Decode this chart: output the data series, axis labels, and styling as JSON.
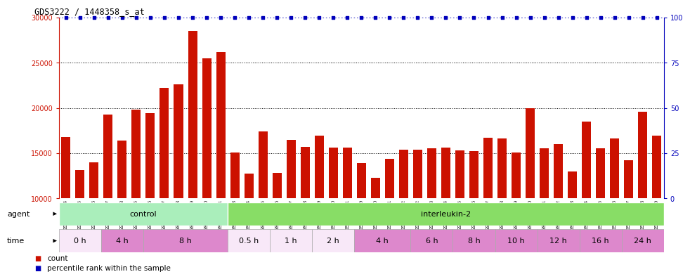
{
  "title": "GDS3222 / 1448358_s_at",
  "samples": [
    "GSM108334",
    "GSM108335",
    "GSM108336",
    "GSM108337",
    "GSM108338",
    "GSM183455",
    "GSM183456",
    "GSM183457",
    "GSM183458",
    "GSM183459",
    "GSM183460",
    "GSM183461",
    "GSM140923",
    "GSM140924",
    "GSM140925",
    "GSM140926",
    "GSM140927",
    "GSM140928",
    "GSM140929",
    "GSM140930",
    "GSM140931",
    "GSM108339",
    "GSM108340",
    "GSM108341",
    "GSM108342",
    "GSM140932",
    "GSM140933",
    "GSM140934",
    "GSM140935",
    "GSM140936",
    "GSM140937",
    "GSM140938",
    "GSM140939",
    "GSM140940",
    "GSM140941",
    "GSM140942",
    "GSM140943",
    "GSM140944",
    "GSM140945",
    "GSM140946",
    "GSM140947",
    "GSM140948",
    "GSM140949"
  ],
  "values": [
    16800,
    13100,
    14000,
    19300,
    16400,
    19800,
    19400,
    22200,
    22600,
    28500,
    25500,
    26200,
    15100,
    12700,
    17400,
    12800,
    16500,
    15700,
    16900,
    15600,
    15600,
    13900,
    12300,
    14400,
    15400,
    15400,
    15500,
    15600,
    15300,
    15200,
    16700,
    16600,
    15100,
    20000,
    15500,
    16000,
    13000,
    18500,
    15500,
    16600,
    14200,
    19600,
    16900
  ],
  "bar_color": "#cc1100",
  "percentile_color": "#0000bb",
  "chart_bg": "#ffffff",
  "fig_bg": "#ffffff",
  "ylim_left": [
    10000,
    30000
  ],
  "ylim_right": [
    0,
    100
  ],
  "yticks_left": [
    10000,
    15000,
    20000,
    25000,
    30000
  ],
  "yticks_right": [
    0,
    25,
    50,
    75,
    100
  ],
  "agent_groups": [
    {
      "label": "control",
      "start": 0,
      "end": 12,
      "color": "#aaeebb"
    },
    {
      "label": "interleukin-2",
      "start": 12,
      "end": 43,
      "color": "#88dd66"
    }
  ],
  "time_groups": [
    {
      "label": "0 h",
      "start": 0,
      "end": 3,
      "color": "#f8e8f8"
    },
    {
      "label": "4 h",
      "start": 3,
      "end": 6,
      "color": "#dd88cc"
    },
    {
      "label": "8 h",
      "start": 6,
      "end": 12,
      "color": "#dd88cc"
    },
    {
      "label": "0.5 h",
      "start": 12,
      "end": 15,
      "color": "#f8e8f8"
    },
    {
      "label": "1 h",
      "start": 15,
      "end": 18,
      "color": "#f8e8f8"
    },
    {
      "label": "2 h",
      "start": 18,
      "end": 21,
      "color": "#f8e8f8"
    },
    {
      "label": "4 h",
      "start": 21,
      "end": 25,
      "color": "#dd88cc"
    },
    {
      "label": "6 h",
      "start": 25,
      "end": 28,
      "color": "#dd88cc"
    },
    {
      "label": "8 h",
      "start": 28,
      "end": 31,
      "color": "#dd88cc"
    },
    {
      "label": "10 h",
      "start": 31,
      "end": 34,
      "color": "#dd88cc"
    },
    {
      "label": "12 h",
      "start": 34,
      "end": 37,
      "color": "#dd88cc"
    },
    {
      "label": "16 h",
      "start": 37,
      "end": 40,
      "color": "#dd88cc"
    },
    {
      "label": "24 h",
      "start": 40,
      "end": 43,
      "color": "#dd88cc"
    }
  ],
  "legend_count_label": "count",
  "legend_pct_label": "percentile rank within the sample",
  "agent_label": "agent",
  "time_label": "time",
  "gridline_color": "#000000",
  "spine_left_color": "#cc1100",
  "spine_right_color": "#0000bb"
}
